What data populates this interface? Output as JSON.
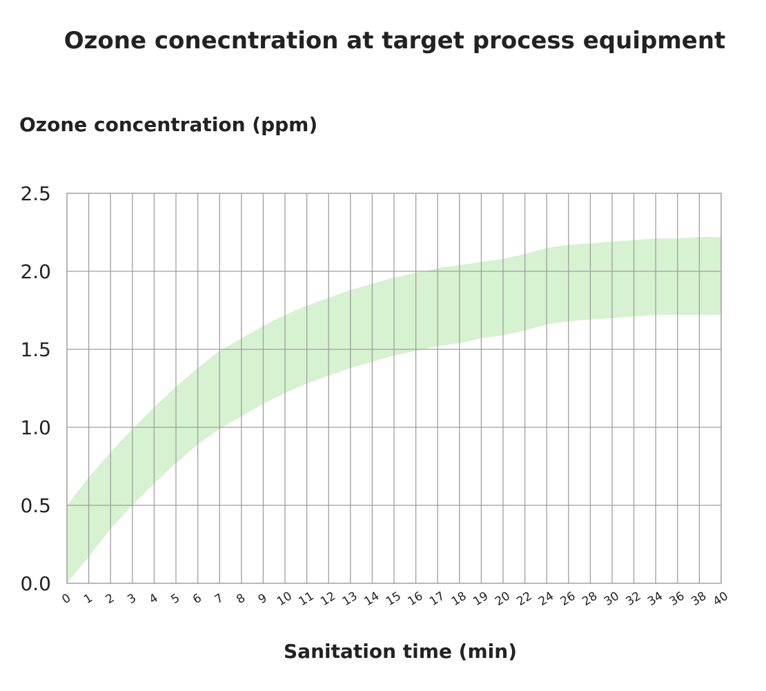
{
  "chart_data": {
    "type": "area",
    "title": "Ozone conecntration at target process equipment",
    "ylabel": "Ozone concentration (ppm)",
    "xlabel": "Sanitation time (min)",
    "categories": [
      "0",
      "1",
      "2",
      "3",
      "4",
      "5",
      "6",
      "7",
      "8",
      "9",
      "10",
      "11",
      "12",
      "13",
      "14",
      "15",
      "16",
      "17",
      "18",
      "19",
      "20",
      "22",
      "24",
      "26",
      "28",
      "30",
      "32",
      "34",
      "36",
      "38",
      "40"
    ],
    "ylim": [
      0,
      2.5
    ],
    "y_ticks": [
      "0.0",
      "0.5",
      "1.0",
      "1.5",
      "2.0",
      "2.5"
    ],
    "y_tick_values": [
      0,
      0.5,
      1.0,
      1.5,
      2.0,
      2.5
    ],
    "grid": true,
    "band_color": "#d6f2d0",
    "series": [
      {
        "role": "upper",
        "values": [
          0.5,
          0.68,
          0.84,
          0.99,
          1.13,
          1.26,
          1.38,
          1.49,
          1.57,
          1.65,
          1.72,
          1.78,
          1.83,
          1.88,
          1.92,
          1.96,
          1.99,
          2.02,
          2.04,
          2.06,
          2.08,
          2.11,
          2.15,
          2.17,
          2.18,
          2.19,
          2.2,
          2.21,
          2.21,
          2.22,
          2.22
        ]
      },
      {
        "role": "lower",
        "values": [
          0.0,
          0.17,
          0.35,
          0.5,
          0.64,
          0.77,
          0.89,
          0.99,
          1.07,
          1.15,
          1.22,
          1.28,
          1.33,
          1.38,
          1.42,
          1.46,
          1.49,
          1.52,
          1.54,
          1.57,
          1.59,
          1.62,
          1.66,
          1.68,
          1.69,
          1.7,
          1.71,
          1.72,
          1.72,
          1.72,
          1.72
        ]
      }
    ]
  }
}
